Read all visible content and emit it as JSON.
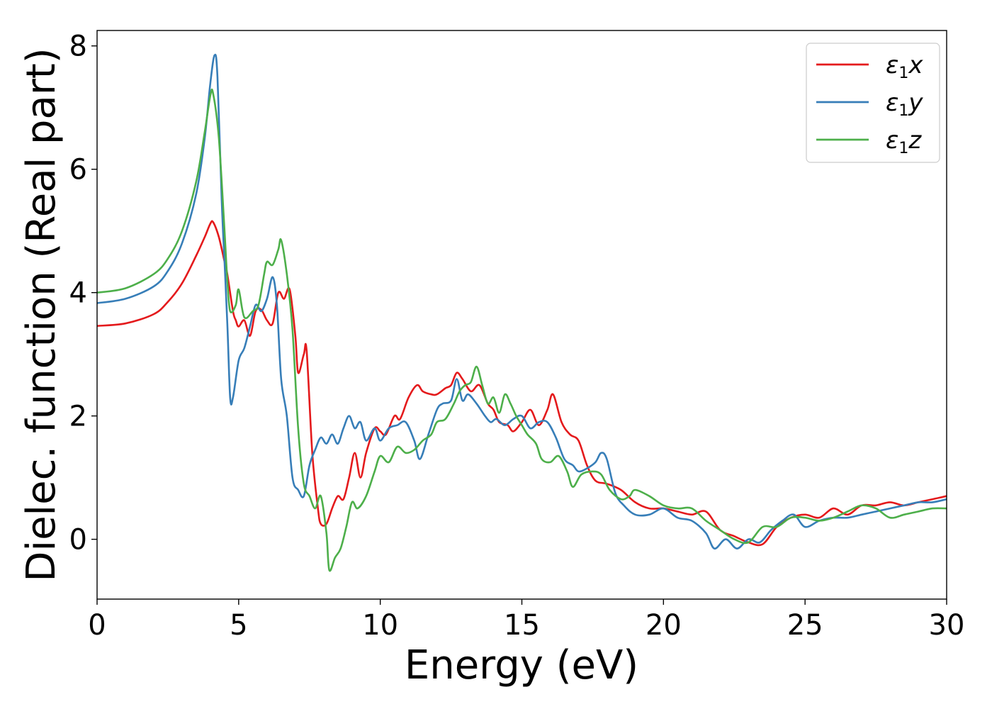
{
  "chart_data": {
    "type": "line",
    "xlabel": "Energy (eV)",
    "ylabel": "Dielec. function (Real part)",
    "xlim": [
      0,
      30
    ],
    "ylim": [
      -0.97,
      8.25
    ],
    "xticks": [
      0,
      5,
      10,
      15,
      20,
      25,
      30
    ],
    "yticks": [
      0,
      2,
      4,
      6,
      8
    ],
    "grid": false,
    "legend_position": "top-right",
    "series": [
      {
        "name": "ε1x",
        "legend": {
          "base": "ε",
          "sub": "1",
          "suffix": "x"
        },
        "color": "#e41a1c",
        "points": [
          [
            0,
            3.46
          ],
          [
            1,
            3.5
          ],
          [
            2,
            3.65
          ],
          [
            2.5,
            3.85
          ],
          [
            3,
            4.15
          ],
          [
            3.5,
            4.6
          ],
          [
            3.8,
            4.9
          ],
          [
            4.0,
            5.12
          ],
          [
            4.1,
            5.14
          ],
          [
            4.3,
            4.9
          ],
          [
            4.5,
            4.5
          ],
          [
            4.6,
            4.3
          ],
          [
            4.8,
            3.7
          ],
          [
            4.9,
            3.55
          ],
          [
            5.0,
            3.45
          ],
          [
            5.2,
            3.55
          ],
          [
            5.4,
            3.3
          ],
          [
            5.6,
            3.7
          ],
          [
            5.8,
            3.72
          ],
          [
            6.0,
            3.55
          ],
          [
            6.2,
            3.5
          ],
          [
            6.4,
            4.0
          ],
          [
            6.6,
            3.9
          ],
          [
            6.8,
            4.05
          ],
          [
            7.0,
            3.3
          ],
          [
            7.1,
            2.7
          ],
          [
            7.3,
            3.0
          ],
          [
            7.4,
            3.05
          ],
          [
            7.6,
            1.4
          ],
          [
            7.8,
            0.5
          ],
          [
            7.9,
            0.25
          ],
          [
            8.1,
            0.25
          ],
          [
            8.3,
            0.5
          ],
          [
            8.5,
            0.7
          ],
          [
            8.7,
            0.65
          ],
          [
            8.9,
            1.0
          ],
          [
            9.1,
            1.4
          ],
          [
            9.3,
            1.0
          ],
          [
            9.5,
            1.4
          ],
          [
            9.8,
            1.8
          ],
          [
            10.0,
            1.75
          ],
          [
            10.2,
            1.7
          ],
          [
            10.5,
            2.0
          ],
          [
            10.7,
            1.95
          ],
          [
            11.0,
            2.3
          ],
          [
            11.3,
            2.5
          ],
          [
            11.5,
            2.4
          ],
          [
            11.8,
            2.35
          ],
          [
            12.0,
            2.35
          ],
          [
            12.3,
            2.45
          ],
          [
            12.5,
            2.5
          ],
          [
            12.7,
            2.7
          ],
          [
            12.9,
            2.6
          ],
          [
            13.2,
            2.4
          ],
          [
            13.5,
            2.5
          ],
          [
            13.8,
            2.2
          ],
          [
            14.0,
            2.1
          ],
          [
            14.2,
            1.9
          ],
          [
            14.5,
            1.85
          ],
          [
            14.7,
            1.75
          ],
          [
            15.0,
            1.9
          ],
          [
            15.3,
            2.1
          ],
          [
            15.6,
            1.85
          ],
          [
            15.9,
            2.1
          ],
          [
            16.1,
            2.35
          ],
          [
            16.4,
            1.9
          ],
          [
            16.7,
            1.7
          ],
          [
            17.0,
            1.6
          ],
          [
            17.3,
            1.2
          ],
          [
            17.6,
            0.95
          ],
          [
            18.0,
            0.9
          ],
          [
            18.5,
            0.8
          ],
          [
            19.0,
            0.6
          ],
          [
            19.5,
            0.5
          ],
          [
            20.0,
            0.5
          ],
          [
            20.5,
            0.45
          ],
          [
            21.0,
            0.4
          ],
          [
            21.5,
            0.45
          ],
          [
            22.0,
            0.15
          ],
          [
            22.5,
            0.05
          ],
          [
            23.0,
            -0.05
          ],
          [
            23.5,
            -0.08
          ],
          [
            24.0,
            0.2
          ],
          [
            24.5,
            0.35
          ],
          [
            25.0,
            0.4
          ],
          [
            25.5,
            0.35
          ],
          [
            26.0,
            0.5
          ],
          [
            26.5,
            0.4
          ],
          [
            27.0,
            0.55
          ],
          [
            27.5,
            0.55
          ],
          [
            28.0,
            0.6
          ],
          [
            28.5,
            0.55
          ],
          [
            29.0,
            0.6
          ],
          [
            29.5,
            0.65
          ],
          [
            30.0,
            0.7
          ]
        ]
      },
      {
        "name": "ε1y",
        "legend": {
          "base": "ε",
          "sub": "1",
          "suffix": "y"
        },
        "color": "#377eb8",
        "points": [
          [
            0,
            3.83
          ],
          [
            1,
            3.9
          ],
          [
            2,
            4.1
          ],
          [
            2.5,
            4.35
          ],
          [
            3,
            4.8
          ],
          [
            3.5,
            5.6
          ],
          [
            3.8,
            6.5
          ],
          [
            4.0,
            7.4
          ],
          [
            4.15,
            7.85
          ],
          [
            4.25,
            7.5
          ],
          [
            4.4,
            5.5
          ],
          [
            4.5,
            4.5
          ],
          [
            4.6,
            3.5
          ],
          [
            4.7,
            2.3
          ],
          [
            4.8,
            2.3
          ],
          [
            5.0,
            2.9
          ],
          [
            5.2,
            3.1
          ],
          [
            5.4,
            3.45
          ],
          [
            5.6,
            3.8
          ],
          [
            5.8,
            3.7
          ],
          [
            6.0,
            3.9
          ],
          [
            6.2,
            4.25
          ],
          [
            6.35,
            3.8
          ],
          [
            6.5,
            2.6
          ],
          [
            6.7,
            2.0
          ],
          [
            6.9,
            1.0
          ],
          [
            7.1,
            0.8
          ],
          [
            7.3,
            0.7
          ],
          [
            7.5,
            1.2
          ],
          [
            7.7,
            1.45
          ],
          [
            7.9,
            1.65
          ],
          [
            8.1,
            1.55
          ],
          [
            8.3,
            1.7
          ],
          [
            8.5,
            1.55
          ],
          [
            8.7,
            1.8
          ],
          [
            8.9,
            2.0
          ],
          [
            9.1,
            1.8
          ],
          [
            9.3,
            1.9
          ],
          [
            9.5,
            1.6
          ],
          [
            9.8,
            1.8
          ],
          [
            10.0,
            1.6
          ],
          [
            10.3,
            1.8
          ],
          [
            10.6,
            1.85
          ],
          [
            10.9,
            1.9
          ],
          [
            11.2,
            1.6
          ],
          [
            11.4,
            1.3
          ],
          [
            11.7,
            1.7
          ],
          [
            12.0,
            2.1
          ],
          [
            12.2,
            2.2
          ],
          [
            12.5,
            2.25
          ],
          [
            12.7,
            2.6
          ],
          [
            12.9,
            2.25
          ],
          [
            13.1,
            2.35
          ],
          [
            13.4,
            2.2
          ],
          [
            13.7,
            2.0
          ],
          [
            13.9,
            1.9
          ],
          [
            14.1,
            1.95
          ],
          [
            14.4,
            1.85
          ],
          [
            14.7,
            1.95
          ],
          [
            15.0,
            2.0
          ],
          [
            15.3,
            1.8
          ],
          [
            15.6,
            1.9
          ],
          [
            15.9,
            1.9
          ],
          [
            16.2,
            1.65
          ],
          [
            16.5,
            1.3
          ],
          [
            16.8,
            1.2
          ],
          [
            17.0,
            1.1
          ],
          [
            17.3,
            1.15
          ],
          [
            17.6,
            1.25
          ],
          [
            17.8,
            1.4
          ],
          [
            18.0,
            1.3
          ],
          [
            18.3,
            0.75
          ],
          [
            18.6,
            0.55
          ],
          [
            19.0,
            0.4
          ],
          [
            19.5,
            0.4
          ],
          [
            20.0,
            0.5
          ],
          [
            20.5,
            0.35
          ],
          [
            21.0,
            0.3
          ],
          [
            21.5,
            0.1
          ],
          [
            21.8,
            -0.15
          ],
          [
            22.2,
            0.0
          ],
          [
            22.6,
            -0.15
          ],
          [
            23.0,
            0.0
          ],
          [
            23.4,
            -0.05
          ],
          [
            23.8,
            0.15
          ],
          [
            24.2,
            0.3
          ],
          [
            24.6,
            0.4
          ],
          [
            25.0,
            0.2
          ],
          [
            25.5,
            0.3
          ],
          [
            26.0,
            0.35
          ],
          [
            26.5,
            0.35
          ],
          [
            27.0,
            0.4
          ],
          [
            27.5,
            0.45
          ],
          [
            28.0,
            0.5
          ],
          [
            28.5,
            0.55
          ],
          [
            29.0,
            0.6
          ],
          [
            29.5,
            0.6
          ],
          [
            30.0,
            0.65
          ]
        ]
      },
      {
        "name": "ε1z",
        "legend": {
          "base": "ε",
          "sub": "1",
          "suffix": "z"
        },
        "color": "#4daf4a",
        "points": [
          [
            0,
            4.0
          ],
          [
            1,
            4.07
          ],
          [
            2,
            4.3
          ],
          [
            2.5,
            4.55
          ],
          [
            3,
            5.0
          ],
          [
            3.5,
            5.8
          ],
          [
            3.8,
            6.6
          ],
          [
            4.0,
            7.2
          ],
          [
            4.1,
            7.22
          ],
          [
            4.3,
            6.5
          ],
          [
            4.5,
            5.0
          ],
          [
            4.6,
            4.2
          ],
          [
            4.7,
            3.7
          ],
          [
            4.9,
            3.8
          ],
          [
            5.0,
            4.05
          ],
          [
            5.2,
            3.6
          ],
          [
            5.5,
            3.7
          ],
          [
            5.7,
            3.8
          ],
          [
            5.9,
            4.3
          ],
          [
            6.0,
            4.5
          ],
          [
            6.2,
            4.45
          ],
          [
            6.4,
            4.7
          ],
          [
            6.5,
            4.85
          ],
          [
            6.7,
            4.3
          ],
          [
            6.9,
            3.4
          ],
          [
            7.1,
            1.8
          ],
          [
            7.3,
            0.9
          ],
          [
            7.5,
            0.7
          ],
          [
            7.7,
            0.5
          ],
          [
            7.9,
            0.7
          ],
          [
            8.1,
            0.1
          ],
          [
            8.2,
            -0.5
          ],
          [
            8.4,
            -0.3
          ],
          [
            8.6,
            -0.15
          ],
          [
            8.8,
            0.2
          ],
          [
            9.0,
            0.6
          ],
          [
            9.2,
            0.5
          ],
          [
            9.5,
            0.7
          ],
          [
            9.8,
            1.1
          ],
          [
            10.0,
            1.35
          ],
          [
            10.3,
            1.25
          ],
          [
            10.6,
            1.5
          ],
          [
            10.9,
            1.4
          ],
          [
            11.2,
            1.45
          ],
          [
            11.5,
            1.6
          ],
          [
            11.8,
            1.7
          ],
          [
            12.0,
            1.9
          ],
          [
            12.3,
            1.95
          ],
          [
            12.6,
            2.2
          ],
          [
            12.8,
            2.4
          ],
          [
            13.0,
            2.5
          ],
          [
            13.2,
            2.55
          ],
          [
            13.4,
            2.8
          ],
          [
            13.6,
            2.5
          ],
          [
            13.8,
            2.2
          ],
          [
            14.0,
            2.3
          ],
          [
            14.2,
            2.05
          ],
          [
            14.4,
            2.35
          ],
          [
            14.6,
            2.2
          ],
          [
            14.8,
            2.0
          ],
          [
            15.0,
            1.85
          ],
          [
            15.2,
            1.7
          ],
          [
            15.5,
            1.55
          ],
          [
            15.7,
            1.3
          ],
          [
            16.0,
            1.25
          ],
          [
            16.3,
            1.35
          ],
          [
            16.6,
            1.1
          ],
          [
            16.8,
            0.85
          ],
          [
            17.1,
            1.05
          ],
          [
            17.5,
            1.1
          ],
          [
            17.8,
            1.05
          ],
          [
            18.1,
            0.8
          ],
          [
            18.5,
            0.65
          ],
          [
            18.8,
            0.7
          ],
          [
            19.0,
            0.8
          ],
          [
            19.5,
            0.7
          ],
          [
            20.0,
            0.55
          ],
          [
            20.5,
            0.5
          ],
          [
            21.0,
            0.5
          ],
          [
            21.5,
            0.3
          ],
          [
            22.0,
            0.15
          ],
          [
            22.5,
            0.0
          ],
          [
            23.0,
            -0.05
          ],
          [
            23.5,
            0.2
          ],
          [
            24.0,
            0.2
          ],
          [
            24.5,
            0.35
          ],
          [
            25.0,
            0.35
          ],
          [
            25.5,
            0.3
          ],
          [
            26.0,
            0.35
          ],
          [
            26.5,
            0.45
          ],
          [
            27.0,
            0.55
          ],
          [
            27.5,
            0.5
          ],
          [
            28.0,
            0.35
          ],
          [
            28.5,
            0.4
          ],
          [
            29.0,
            0.45
          ],
          [
            29.5,
            0.5
          ],
          [
            30.0,
            0.5
          ]
        ]
      }
    ]
  }
}
